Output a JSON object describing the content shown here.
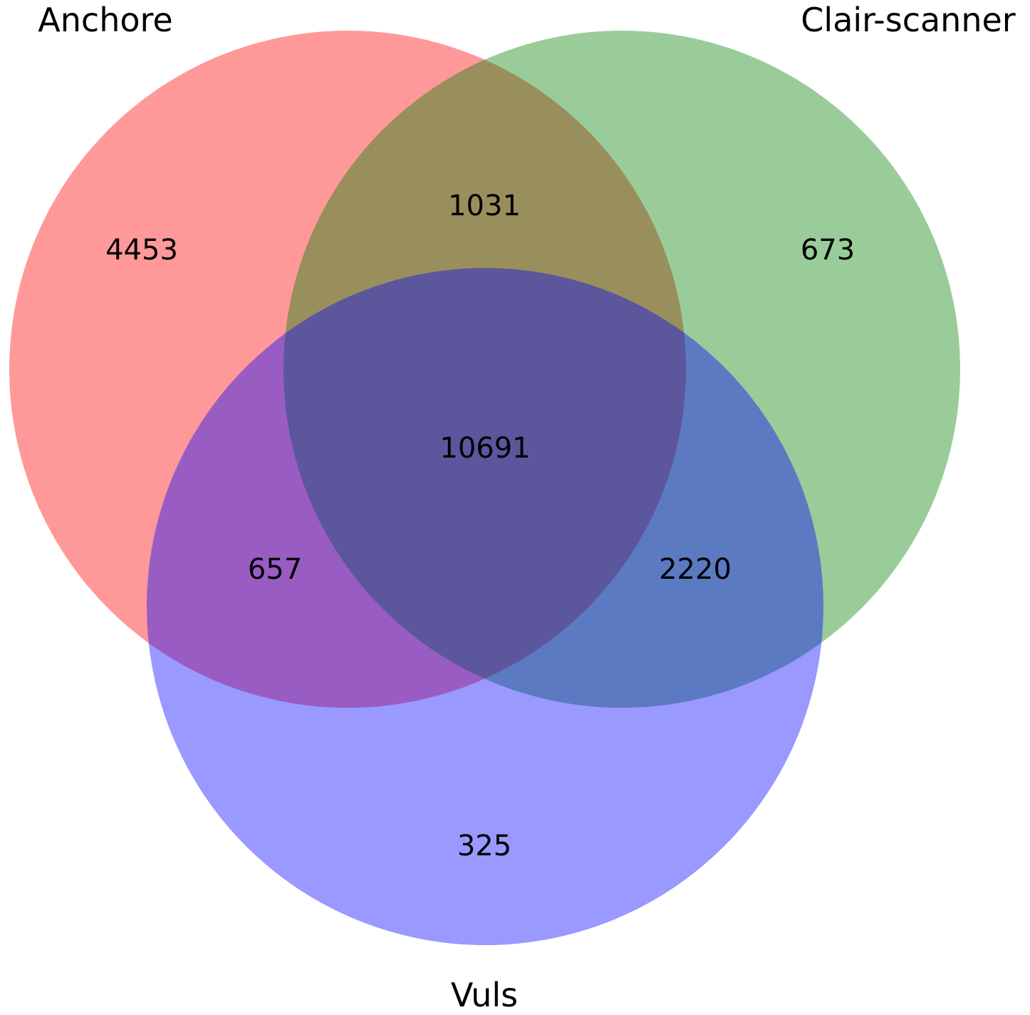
{
  "diagram": {
    "type": "venn3",
    "sets": [
      {
        "name": "Anchore",
        "color": "#ff0000"
      },
      {
        "name": "Clair-scanner",
        "color": "#008000"
      },
      {
        "name": "Vuls",
        "color": "#0000ff"
      }
    ],
    "region_counts": {
      "anchore_only": "4453",
      "clair_only": "673",
      "vuls_only": "325",
      "anchore_clair": "1031",
      "anchore_vuls": "657",
      "clair_vuls": "2220",
      "all_three": "10691"
    },
    "fill_opacity": 0.4
  }
}
